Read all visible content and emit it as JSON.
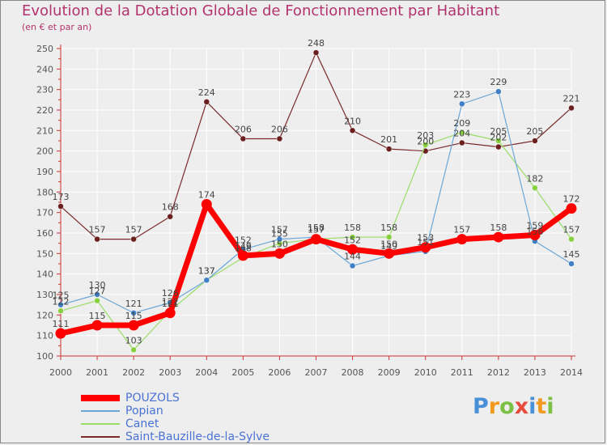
{
  "title": "Evolution de la Dotation Globale de Fonctionnement par Habitant",
  "subtitle": "(en € et par an)",
  "logo_text": "Proxiti",
  "colors": {
    "title": "#b3336e",
    "grid": "#ffffff",
    "axis": "#cc3333",
    "label": "#555555",
    "legend_text": "#4a73d6"
  },
  "chart_data": {
    "type": "line",
    "title": "Evolution de la Dotation Globale de Fonctionnement par Habitant",
    "subtitle": "(en € et par an)",
    "xlabel": "",
    "ylabel": "",
    "x": [
      "2000",
      "2001",
      "2002",
      "2003",
      "2004",
      "2005",
      "2006",
      "2007",
      "2008",
      "2009",
      "2010",
      "2011",
      "2012",
      "2013",
      "2014"
    ],
    "ylim": [
      100,
      250
    ],
    "yticks": [
      100,
      110,
      120,
      130,
      140,
      150,
      160,
      170,
      180,
      190,
      200,
      210,
      220,
      230,
      240,
      250
    ],
    "grid": true,
    "legend_position": "bottom-left",
    "series": [
      {
        "name": "POUZOLS",
        "color": "#ff0000",
        "marker_color": "#ff0000",
        "width": 7,
        "values": [
          111,
          115,
          115,
          121,
          174,
          149,
          150,
          157,
          152,
          150,
          153,
          157,
          158,
          159,
          172
        ],
        "labels": [
          "111",
          "115",
          "115",
          "121",
          "174",
          "149",
          "150",
          "157",
          "152",
          "150",
          "153",
          "157",
          "158",
          "159",
          "172"
        ]
      },
      {
        "name": "Popian",
        "color": "#6aa6d8",
        "marker_color": "#3f7fc6",
        "width": 1.2,
        "values": [
          125,
          130,
          121,
          126,
          137,
          152,
          157,
          158,
          144,
          149,
          151,
          223,
          229,
          156,
          145
        ],
        "labels": [
          "125",
          "130",
          "121",
          "126",
          "137",
          "152",
          "157",
          "158",
          "144",
          "149",
          "151",
          "223",
          "229",
          "156",
          "145"
        ]
      },
      {
        "name": "Canet",
        "color": "#99dd66",
        "marker_color": "#88d040",
        "width": 1.2,
        "values": [
          122,
          127,
          103,
          122,
          137,
          148,
          155,
          157,
          158,
          158,
          203,
          209,
          205,
          182,
          157
        ],
        "labels": [
          "122",
          "127",
          "103",
          "122",
          "137",
          "148",
          "155",
          "157",
          "158",
          "158",
          "203",
          "209",
          "205",
          "182",
          "157"
        ]
      },
      {
        "name": "Saint-Bauzille-de-la-Sylve",
        "color": "#7a2a2a",
        "marker_color": "#6b1f1f",
        "width": 1.2,
        "values": [
          173,
          157,
          157,
          168,
          224,
          206,
          206,
          248,
          210,
          201,
          200,
          204,
          202,
          205,
          221
        ],
        "labels": [
          "173",
          "157",
          "157",
          "168",
          "224",
          "206",
          "206",
          "248",
          "210",
          "201",
          "200",
          "204",
          "202",
          "205",
          "221"
        ]
      }
    ]
  }
}
